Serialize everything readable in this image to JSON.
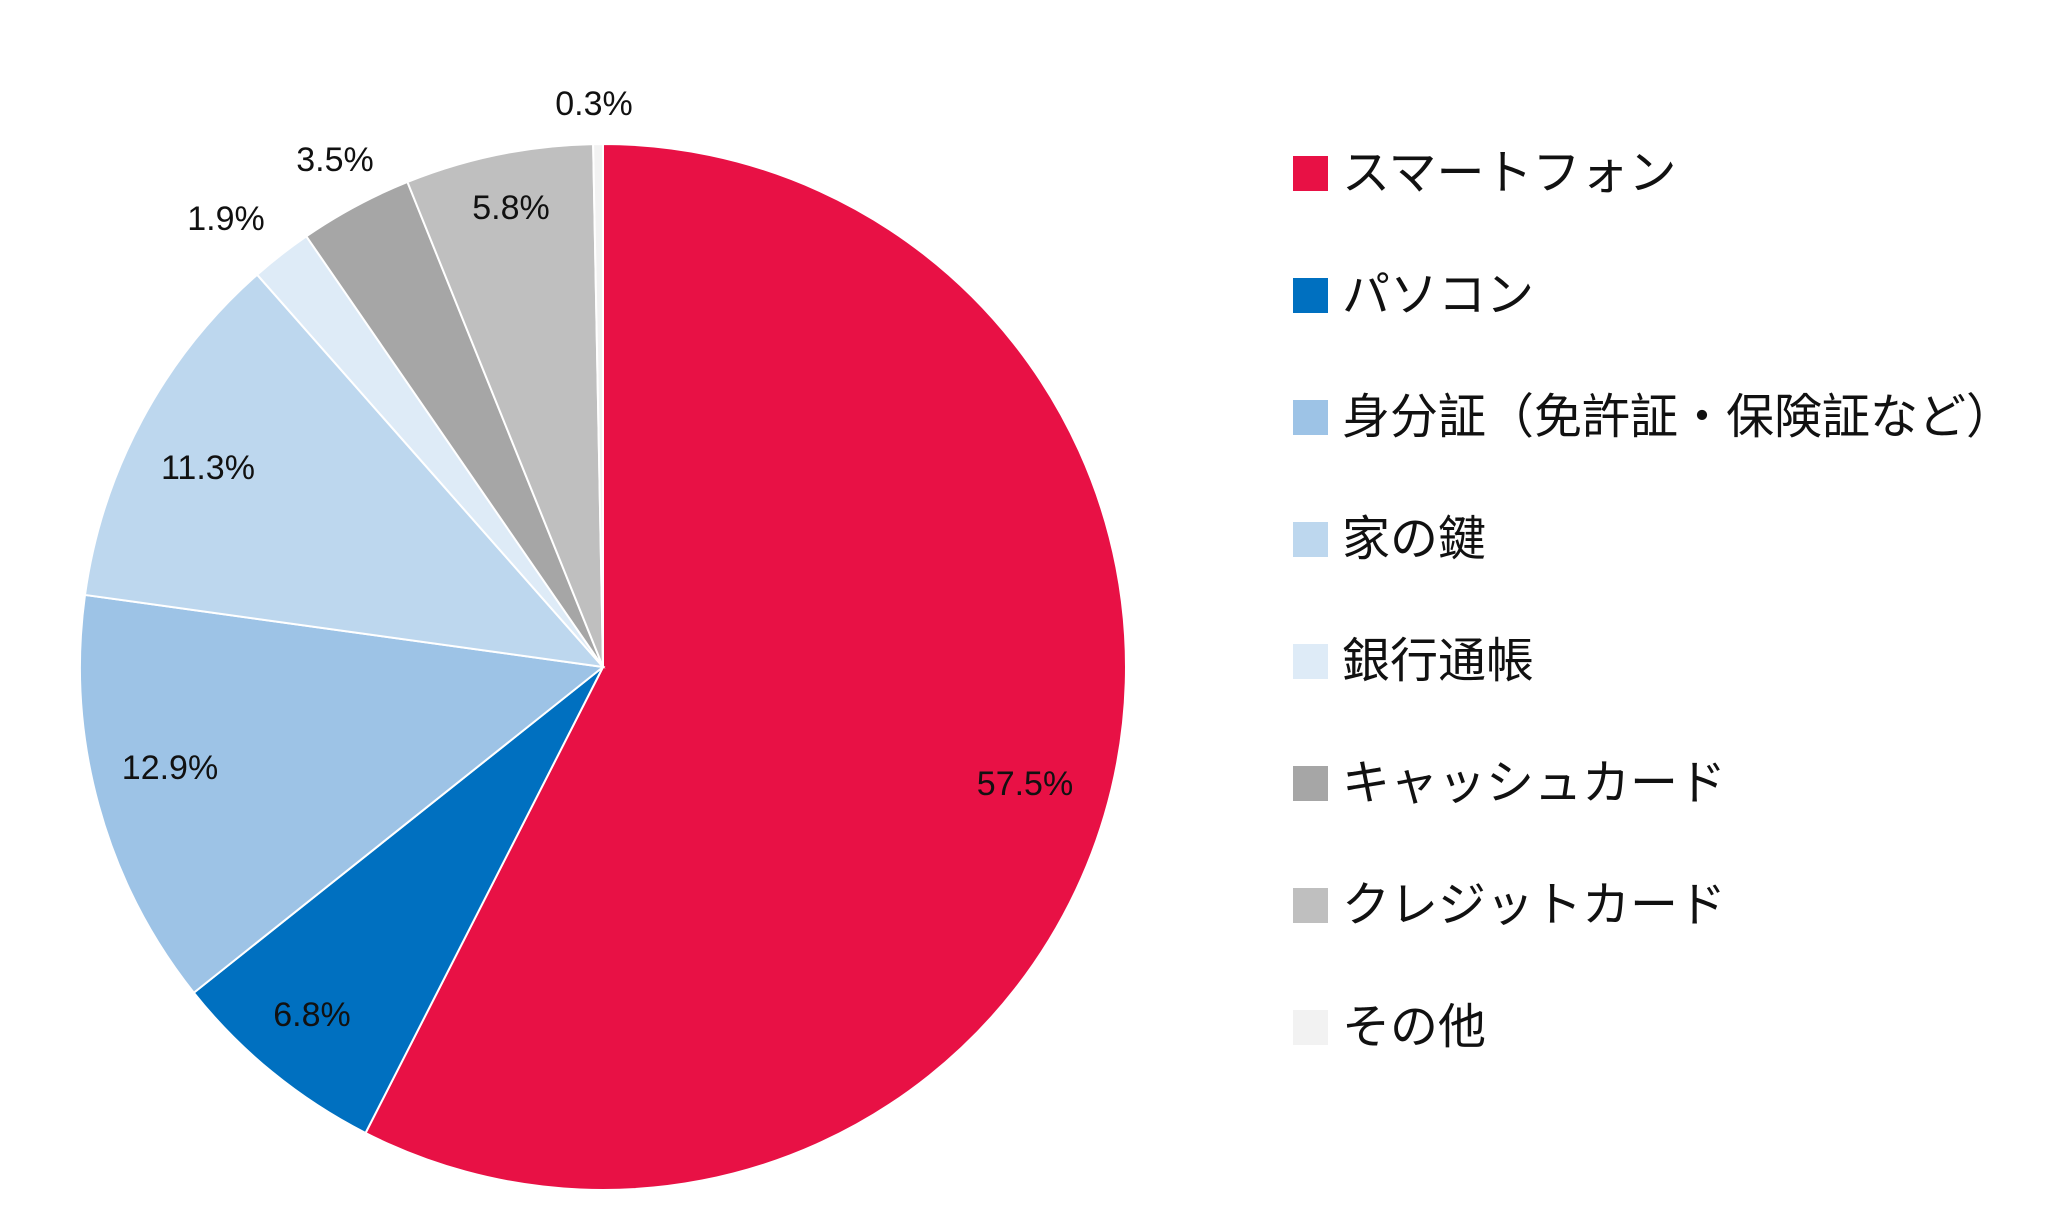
{
  "chart_data": {
    "type": "pie",
    "title": "",
    "start_angle_deg": 0,
    "direction": "clockwise",
    "legend_position": "right",
    "slices": [
      {
        "label": "スマートフォン",
        "value": 57.5,
        "display": "57.5%",
        "color": "#E81145"
      },
      {
        "label": "パソコン",
        "value": 6.8,
        "display": "6.8%",
        "color": "#0070C0"
      },
      {
        "label": "身分証（免許証・保険証など）",
        "value": 12.9,
        "display": "12.9%",
        "color": "#9DC3E6"
      },
      {
        "label": "家の鍵",
        "value": 11.3,
        "display": "11.3%",
        "color": "#BDD7EE"
      },
      {
        "label": "銀行通帳",
        "value": 1.9,
        "display": "1.9%",
        "color": "#DEEBF7"
      },
      {
        "label": "キャッシュカード",
        "value": 3.5,
        "display": "3.5%",
        "color": "#A6A6A6"
      },
      {
        "label": "クレジットカード",
        "value": 5.8,
        "display": "5.8%",
        "color": "#BFBFBF"
      },
      {
        "label": "その他",
        "value": 0.3,
        "display": "0.3%",
        "color": "#F2F2F2"
      }
    ]
  }
}
